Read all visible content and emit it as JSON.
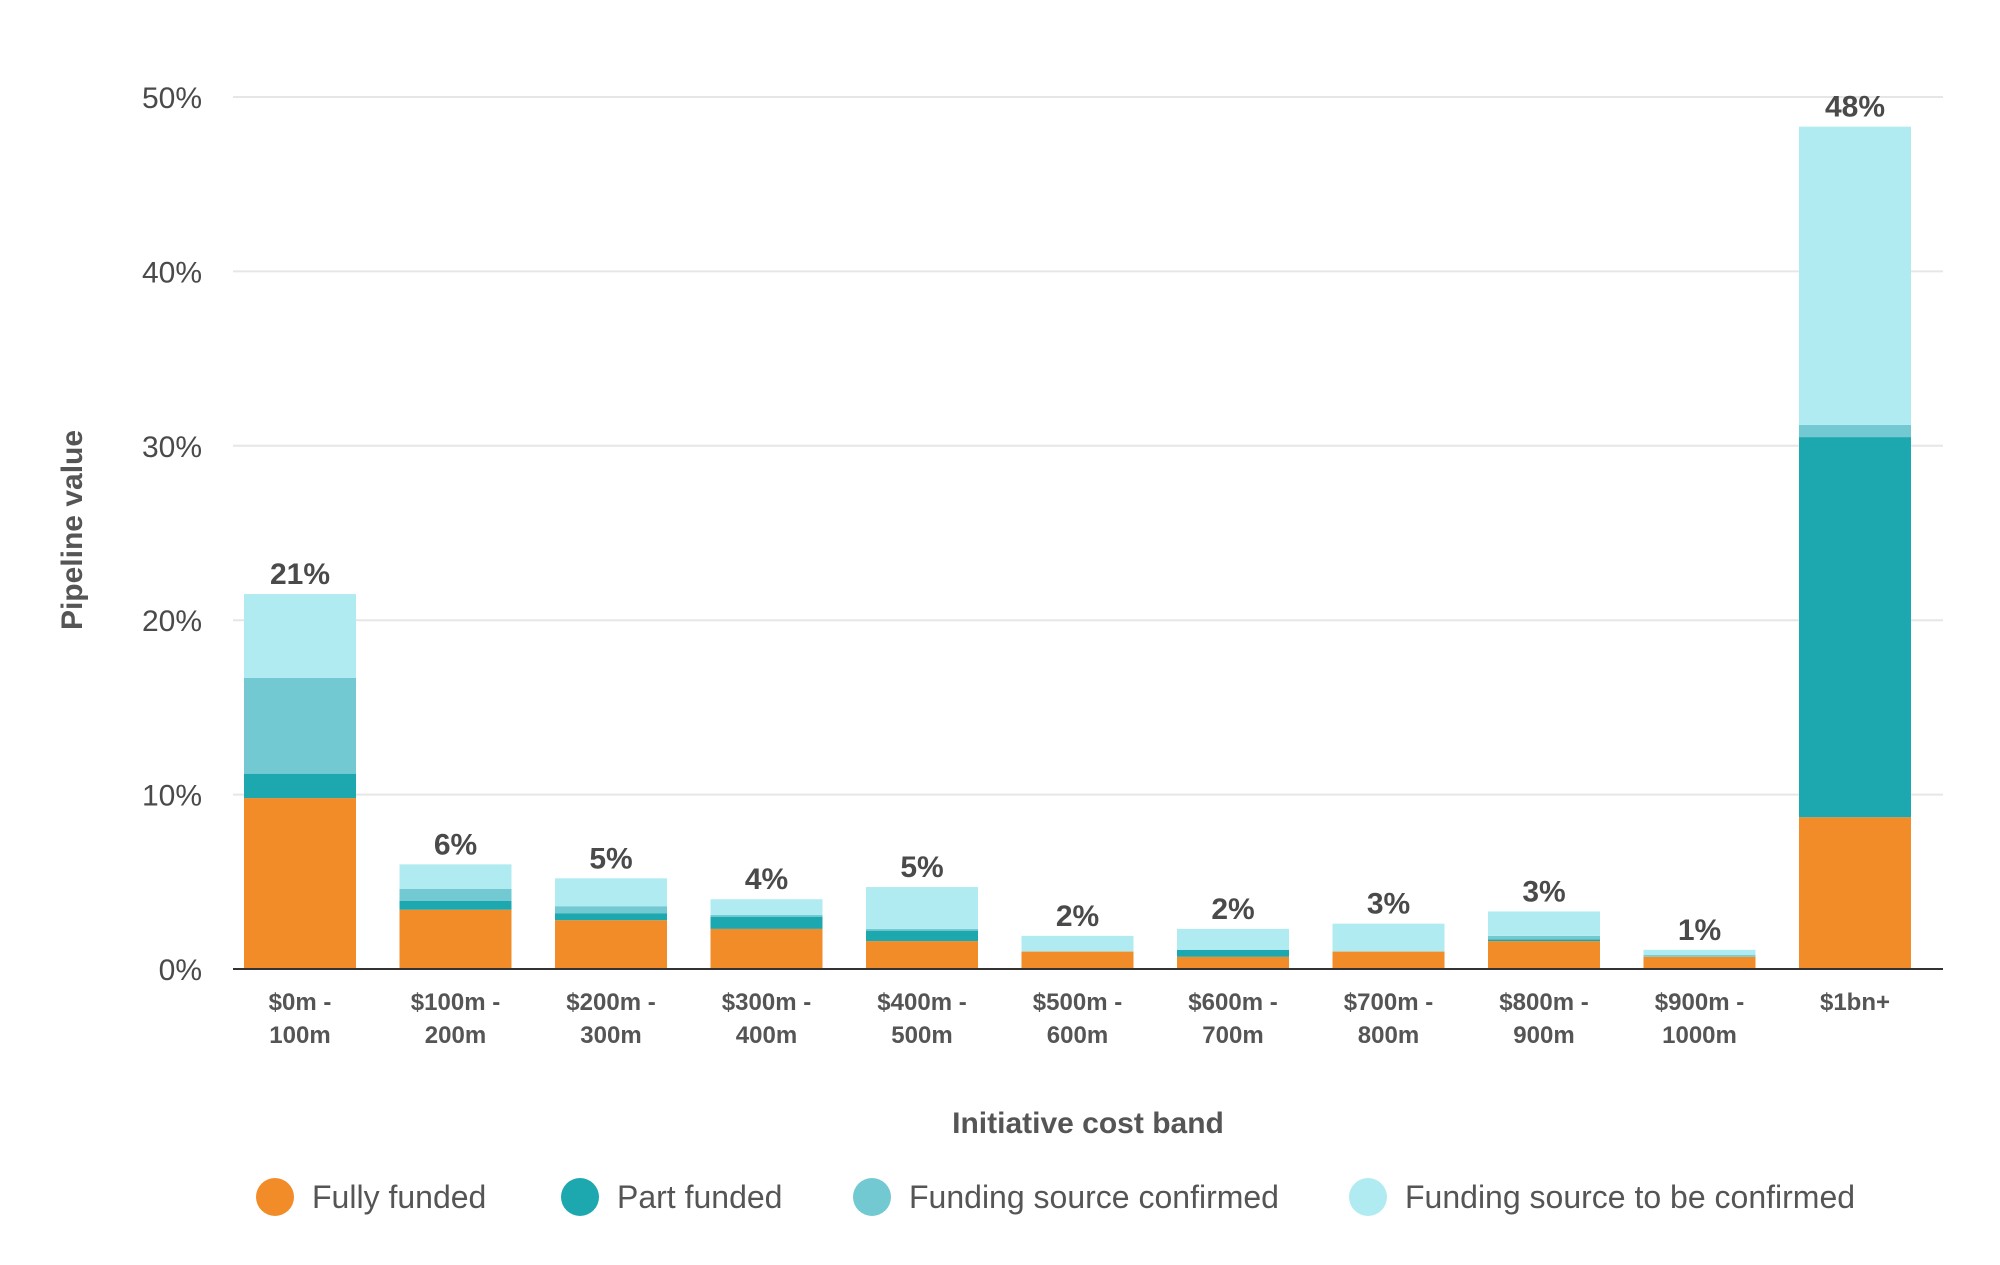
{
  "chart_data": {
    "type": "bar",
    "stacked": true,
    "xlabel": "Initiative cost band",
    "ylabel": "Pipeline value",
    "ylim": [
      0,
      50
    ],
    "yticks": [
      0,
      10,
      20,
      30,
      40,
      50
    ],
    "ytick_labels": [
      "0%",
      "10%",
      "20%",
      "30%",
      "40%",
      "50%"
    ],
    "grid": true,
    "legend_position": "bottom",
    "categories": [
      [
        "$0m -",
        "100m"
      ],
      [
        "$100m -",
        "200m"
      ],
      [
        "$200m -",
        "300m"
      ],
      [
        "$300m -",
        "400m"
      ],
      [
        "$400m -",
        "500m"
      ],
      [
        "$500m -",
        "600m"
      ],
      [
        "$600m -",
        "700m"
      ],
      [
        "$700m -",
        "800m"
      ],
      [
        "$800m -",
        "900m"
      ],
      [
        "$900m -",
        "1000m"
      ],
      [
        "$1bn+"
      ]
    ],
    "series": [
      {
        "name": "Fully funded",
        "color": "#f28c28",
        "values": [
          9.8,
          3.4,
          2.8,
          2.3,
          1.6,
          1.0,
          0.7,
          1.0,
          1.6,
          0.7,
          8.7
        ]
      },
      {
        "name": "Part funded",
        "color": "#1da8b0",
        "values": [
          1.4,
          0.5,
          0.4,
          0.7,
          0.6,
          0.0,
          0.4,
          0.0,
          0.1,
          0.0,
          21.8
        ]
      },
      {
        "name": "Funding source confirmed",
        "color": "#72c9d1",
        "values": [
          5.5,
          0.7,
          0.4,
          0.1,
          0.1,
          0.0,
          0.0,
          0.0,
          0.2,
          0.1,
          0.7
        ]
      },
      {
        "name": "Funding source to be confirmed",
        "color": "#b0ebf1",
        "values": [
          4.8,
          1.4,
          1.6,
          0.9,
          2.4,
          0.9,
          1.2,
          1.6,
          1.4,
          0.3,
          17.1
        ]
      }
    ],
    "totals": [
      "21%",
      "6%",
      "5%",
      "4%",
      "5%",
      "2%",
      "2%",
      "3%",
      "3%",
      "1%",
      "48%"
    ]
  }
}
